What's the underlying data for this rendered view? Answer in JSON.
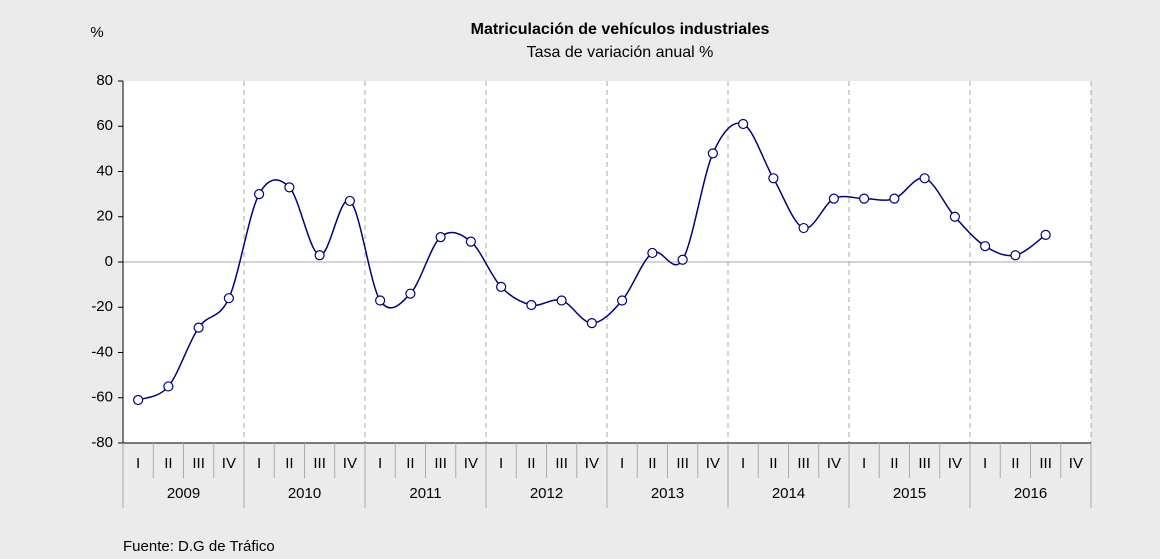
{
  "chart_data": {
    "type": "line",
    "title": "Matriculación de vehículos industriales",
    "subtitle": "Tasa de variación anual %",
    "y_label": "%",
    "source": "Fuente: D.G de Tráfico",
    "categories": [
      "I",
      "II",
      "III",
      "IV",
      "I",
      "II",
      "III",
      "IV",
      "I",
      "II",
      "III",
      "IV",
      "I",
      "II",
      "III",
      "IV",
      "I",
      "II",
      "III",
      "IV",
      "I",
      "II",
      "III",
      "IV",
      "I",
      "II",
      "III",
      "IV",
      "I",
      "II",
      "III",
      "IV"
    ],
    "years": [
      "2009",
      "2010",
      "2011",
      "2012",
      "2013",
      "2014",
      "2015",
      "2016"
    ],
    "series": [
      {
        "name": "Tasa de variación anual %",
        "color": "#000080",
        "values": [
          -61,
          -55,
          -29,
          -16,
          30,
          33,
          3,
          27,
          -17,
          -14,
          11,
          9,
          -11,
          -19,
          -17,
          -27,
          -17,
          4,
          1,
          48,
          61,
          37,
          15,
          28,
          28,
          28,
          37,
          20,
          7,
          3,
          12,
          null
        ]
      }
    ],
    "ylim": [
      -80,
      80
    ],
    "yticks": [
      -80,
      -60,
      -40,
      -20,
      0,
      20,
      40,
      60,
      80
    ],
    "grid": true
  }
}
